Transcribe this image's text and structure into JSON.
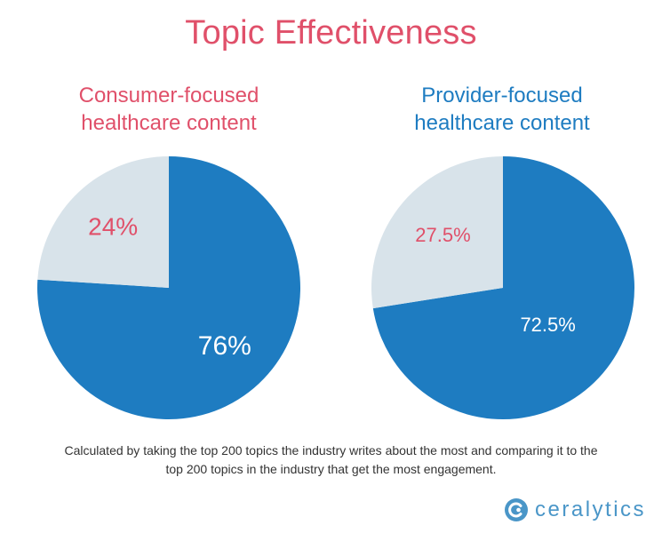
{
  "chart_data": [
    {
      "type": "pie",
      "title": "Consumer-focused healthcare content",
      "slices": [
        {
          "value": 76,
          "label": "76%",
          "color": "#1e7cc1"
        },
        {
          "value": 24,
          "label": "24%",
          "color": "#d8e3ea"
        }
      ]
    },
    {
      "type": "pie",
      "title": "Provider-focused healthcare content",
      "slices": [
        {
          "value": 72.5,
          "label": "72.5%",
          "color": "#1e7cc1"
        },
        {
          "value": 27.5,
          "label": "27.5%",
          "color": "#d8e3ea"
        }
      ]
    }
  ],
  "header": {
    "title": "Topic Effectiveness"
  },
  "footer": {
    "caption_line1": "Calculated by taking the top 200 topics the industry writes about the most and comparing it to the",
    "caption_line2": "top 200 topics in the industry that get the most engagement."
  },
  "brand": {
    "name": "ceralytics",
    "logo_icon": "ceralytics-logo-icon"
  },
  "colors": {
    "pink": "#e0506a",
    "blue": "#1e7cc1",
    "light": "#d8e3ea"
  }
}
